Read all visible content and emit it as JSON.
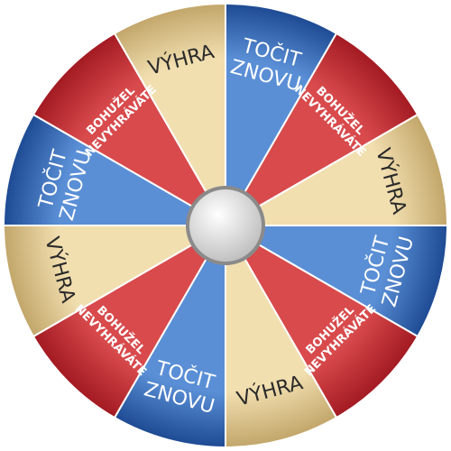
{
  "wheel": {
    "segments": [
      {
        "id": "tocit-znovu-1",
        "kind": "blue",
        "lines": [
          "TOČIT",
          "ZNOVU"
        ]
      },
      {
        "id": "bohuzel-nevyhravate-1",
        "kind": "red",
        "lines": [
          "BOHUŽEL",
          "NEVYHRÁVÁTE"
        ]
      },
      {
        "id": "vyhra-1",
        "kind": "gold",
        "lines": [
          "VÝHRA"
        ]
      },
      {
        "id": "tocit-znovu-2",
        "kind": "blue",
        "lines": [
          "TOČIT",
          "ZNOVU"
        ]
      },
      {
        "id": "bohuzel-nevyhravate-2",
        "kind": "red",
        "lines": [
          "BOHUŽEL",
          "NEVYHRÁVÁTE"
        ]
      },
      {
        "id": "vyhra-2",
        "kind": "gold",
        "lines": [
          "VÝHRA"
        ]
      },
      {
        "id": "tocit-znovu-3",
        "kind": "blue",
        "lines": [
          "TOČIT",
          "ZNOVU"
        ]
      },
      {
        "id": "bohuzel-nevyhravate-3",
        "kind": "red",
        "lines": [
          "BOHUŽEL",
          "NEVYHRÁVÁTE"
        ]
      },
      {
        "id": "vyhra-3",
        "kind": "gold",
        "lines": [
          "VÝHRA"
        ]
      },
      {
        "id": "tocit-znovu-4",
        "kind": "blue",
        "lines": [
          "TOČIT",
          "ZNOVU"
        ]
      },
      {
        "id": "bohuzel-nevyhravate-4",
        "kind": "red",
        "lines": [
          "BOHUŽEL",
          "NEVYHRÁVÁTE"
        ]
      },
      {
        "id": "vyhra-4",
        "kind": "gold",
        "lines": [
          "VÝHRA"
        ]
      }
    ],
    "colors": {
      "blue_light": "#5a8fd6",
      "blue_dark": "#1d4a93",
      "red_light": "#d84a4c",
      "red_dark": "#a31a22",
      "gold_light": "#f2dfb0",
      "gold_dark": "#c2a66a",
      "rim": "#ffffff",
      "hub_light": "#ffffff",
      "hub_dark": "#b8b8b8",
      "hub_ring": "#8a8a8a"
    }
  }
}
